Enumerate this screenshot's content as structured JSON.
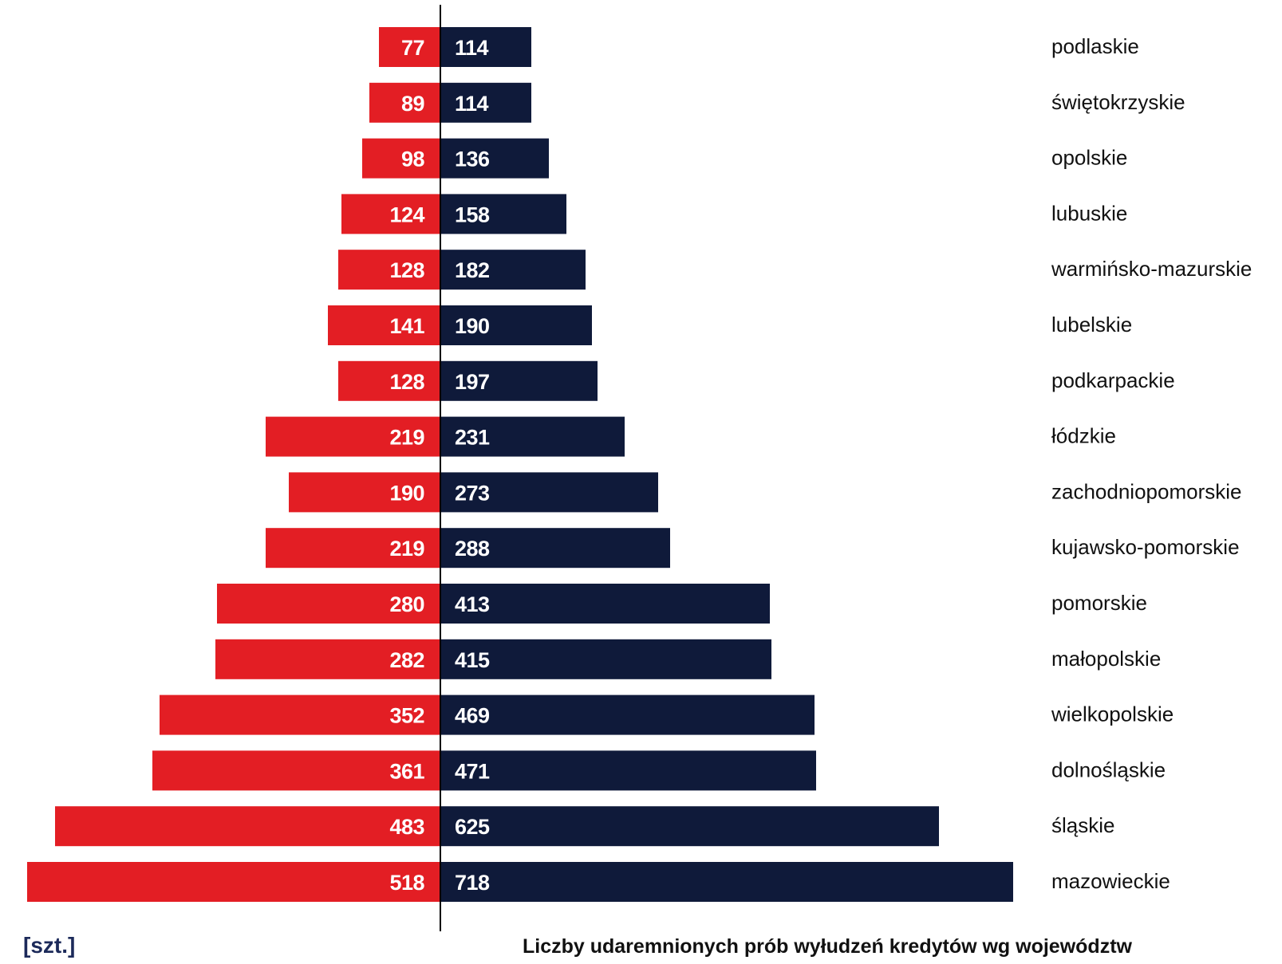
{
  "chart_data": {
    "type": "bar",
    "orientation": "horizontal-diverging",
    "title": "Liczby udaremnionych prób wyłudzeń kredytów wg województw",
    "unit_label": "[szt.]",
    "categories": [
      "podlaskie",
      "świętokrzyskie",
      "opolskie",
      "lubuskie",
      "warmińsko-mazurskie",
      "lubelskie",
      "podkarpackie",
      "łódzkie",
      "zachodniopomorskie",
      "kujawsko-pomorskie",
      "pomorskie",
      "małopolskie",
      "wielkopolskie",
      "dolnośląskie",
      "śląskie",
      "mazowieckie"
    ],
    "series": [
      {
        "side": "left",
        "color": "#e31e24",
        "values": [
          77,
          89,
          98,
          124,
          128,
          141,
          128,
          219,
          190,
          219,
          280,
          282,
          352,
          361,
          483,
          518
        ]
      },
      {
        "side": "right",
        "color": "#0f1a3a",
        "values": [
          114,
          114,
          136,
          158,
          182,
          190,
          197,
          231,
          273,
          288,
          413,
          415,
          469,
          471,
          625,
          718
        ]
      }
    ],
    "grid": false,
    "legend": "none"
  }
}
